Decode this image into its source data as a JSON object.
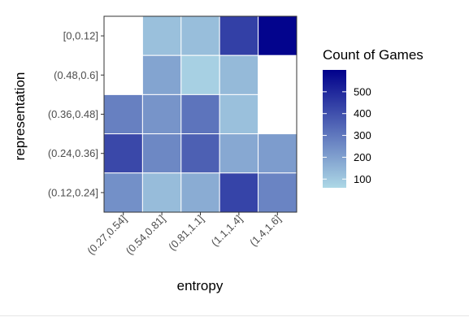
{
  "chart_data": {
    "type": "heatmap",
    "xlabel": "entropy",
    "ylabel": "representation",
    "x_categories": [
      "(0.27,0.54]",
      "(0.54,0.81]",
      "(0.81,1.1]",
      "(1.1,1.4]",
      "(1.4,1.6]"
    ],
    "y_categories": [
      "(0.12,0.24]",
      "(0.24,0.36]",
      "(0.36,0.48]",
      "(0.48,0.6]",
      "[0,0.12]"
    ],
    "cells": [
      {
        "x": "(0.54,0.81]",
        "y": "[0,0.12]",
        "value": 120
      },
      {
        "x": "(0.81,1.1]",
        "y": "[0,0.12]",
        "value": 125
      },
      {
        "x": "(1.1,1.4]",
        "y": "[0,0.12]",
        "value": 440
      },
      {
        "x": "(1.4,1.6]",
        "y": "[0,0.12]",
        "value": 590
      },
      {
        "x": "(0.54,0.81]",
        "y": "(0.48,0.6]",
        "value": 190
      },
      {
        "x": "(0.81,1.1]",
        "y": "(0.48,0.6]",
        "value": 80
      },
      {
        "x": "(1.1,1.4]",
        "y": "(0.48,0.6]",
        "value": 135
      },
      {
        "x": "(0.27,0.54]",
        "y": "(0.36,0.48]",
        "value": 280
      },
      {
        "x": "(0.54,0.81]",
        "y": "(0.36,0.48]",
        "value": 230
      },
      {
        "x": "(0.81,1.1]",
        "y": "(0.36,0.48]",
        "value": 310
      },
      {
        "x": "(1.1,1.4]",
        "y": "(0.36,0.48]",
        "value": 120
      },
      {
        "x": "(0.27,0.54]",
        "y": "(0.24,0.36]",
        "value": 420
      },
      {
        "x": "(0.54,0.81]",
        "y": "(0.24,0.36]",
        "value": 260
      },
      {
        "x": "(0.81,1.1]",
        "y": "(0.24,0.36]",
        "value": 360
      },
      {
        "x": "(1.1,1.4]",
        "y": "(0.24,0.36]",
        "value": 180
      },
      {
        "x": "(1.4,1.6]",
        "y": "(0.24,0.36]",
        "value": 210
      },
      {
        "x": "(0.27,0.54]",
        "y": "(0.12,0.24]",
        "value": 240
      },
      {
        "x": "(0.54,0.81]",
        "y": "(0.12,0.24]",
        "value": 130
      },
      {
        "x": "(0.81,1.1]",
        "y": "(0.12,0.24]",
        "value": 170
      },
      {
        "x": "(1.1,1.4]",
        "y": "(0.12,0.24]",
        "value": 430
      },
      {
        "x": "(1.4,1.6]",
        "y": "(0.12,0.24]",
        "value": 270
      }
    ],
    "legend": {
      "title": "Count of Games",
      "breaks": [
        100,
        200,
        300,
        400,
        500
      ],
      "break_labels": [
        "100",
        "200",
        "300",
        "400",
        "500"
      ],
      "range": [
        60,
        600
      ],
      "placement": "right"
    },
    "colors": {
      "low": "#add8e6",
      "high": "#00008b",
      "panel_border": "#333333",
      "cell_border": "#ffffff"
    },
    "grid": false
  }
}
